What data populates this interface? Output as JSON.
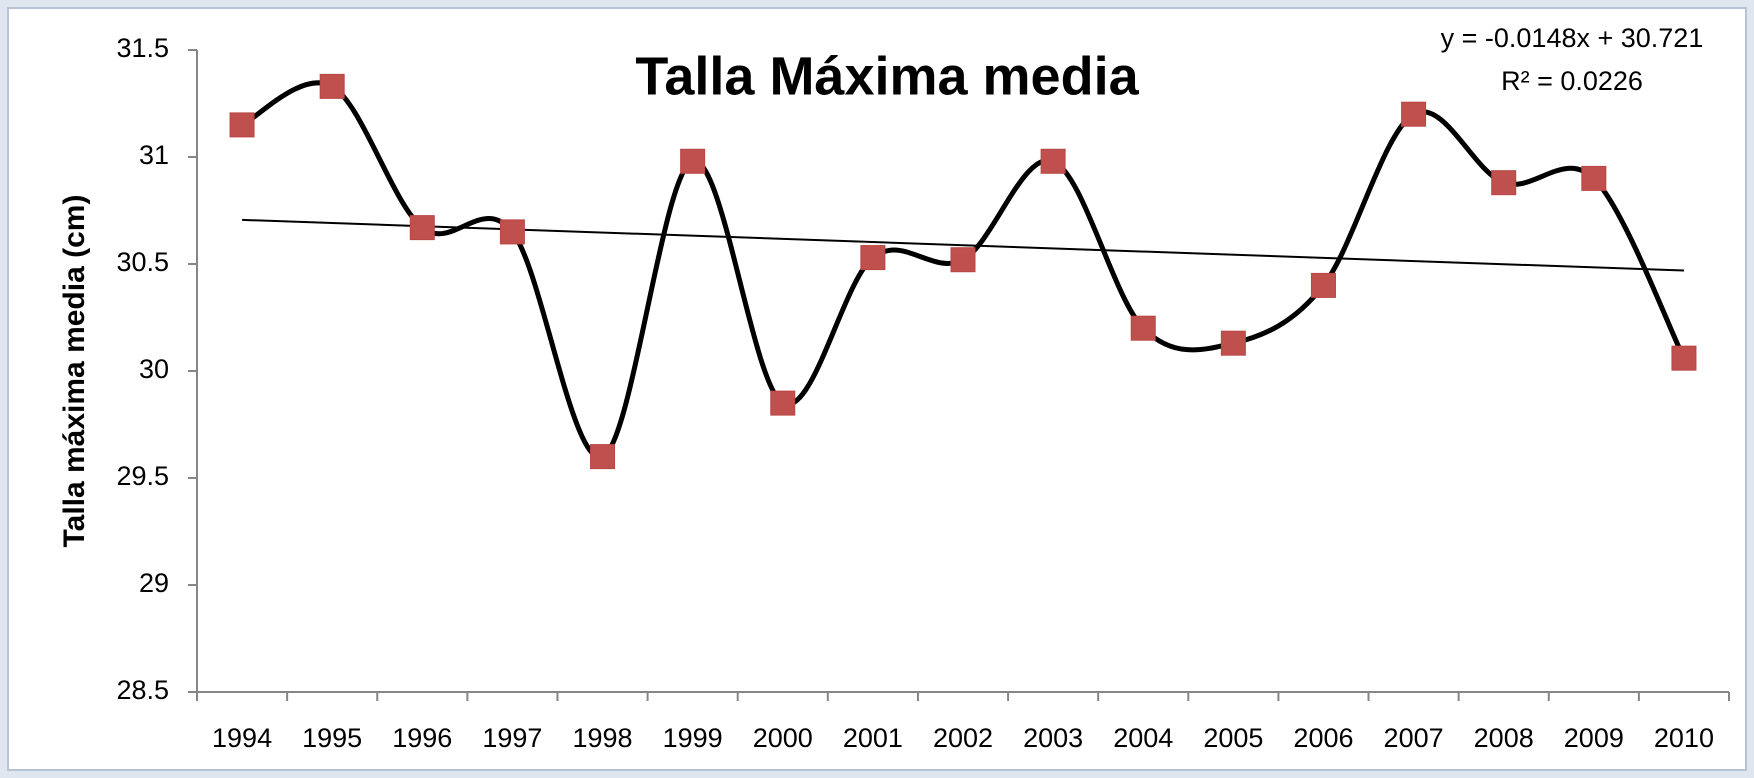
{
  "chart_data": {
    "type": "line",
    "title": "Talla Máxima media",
    "y_label": "Talla máxima media (cm)",
    "categories": [
      "1994",
      "1995",
      "1996",
      "1997",
      "1998",
      "1999",
      "2000",
      "2001",
      "2002",
      "2003",
      "2004",
      "2005",
      "2006",
      "2007",
      "2008",
      "2009",
      "2010"
    ],
    "series": [
      {
        "color": "#c0504d",
        "line_color": "#000000",
        "values": [
          31.15,
          31.33,
          30.67,
          30.65,
          29.6,
          30.98,
          29.85,
          30.53,
          30.52,
          30.98,
          30.2,
          30.13,
          30.4,
          31.2,
          30.88,
          30.9,
          30.06
        ]
      }
    ],
    "trendline": {
      "label": "y = -0.0148x + 30.721",
      "r2_label": "R² = 0.0226",
      "slope": -0.0148,
      "intercept": 30.721
    },
    "ylim": [
      28.5,
      31.5
    ],
    "yticks": [
      28.5,
      29,
      29.5,
      30,
      30.5,
      31,
      31.5
    ],
    "grid": false
  }
}
